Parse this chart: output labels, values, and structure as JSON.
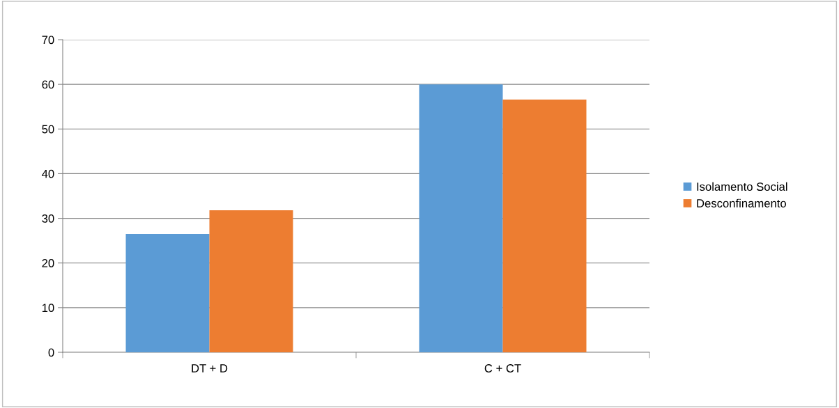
{
  "chart_data": {
    "type": "bar",
    "categories": [
      "DT + D",
      "C + CT"
    ],
    "series": [
      {
        "name": "Isolamento Social",
        "color": "#5b9bd5",
        "values": [
          26.5,
          60
        ]
      },
      {
        "name": "Desconfinamento",
        "color": "#ed7d31",
        "values": [
          31.8,
          56.6
        ]
      }
    ],
    "ylim": [
      0,
      70
    ],
    "yticks": [
      0,
      10,
      20,
      30,
      40,
      50,
      60,
      70
    ],
    "grid": "y",
    "legend": "right"
  }
}
